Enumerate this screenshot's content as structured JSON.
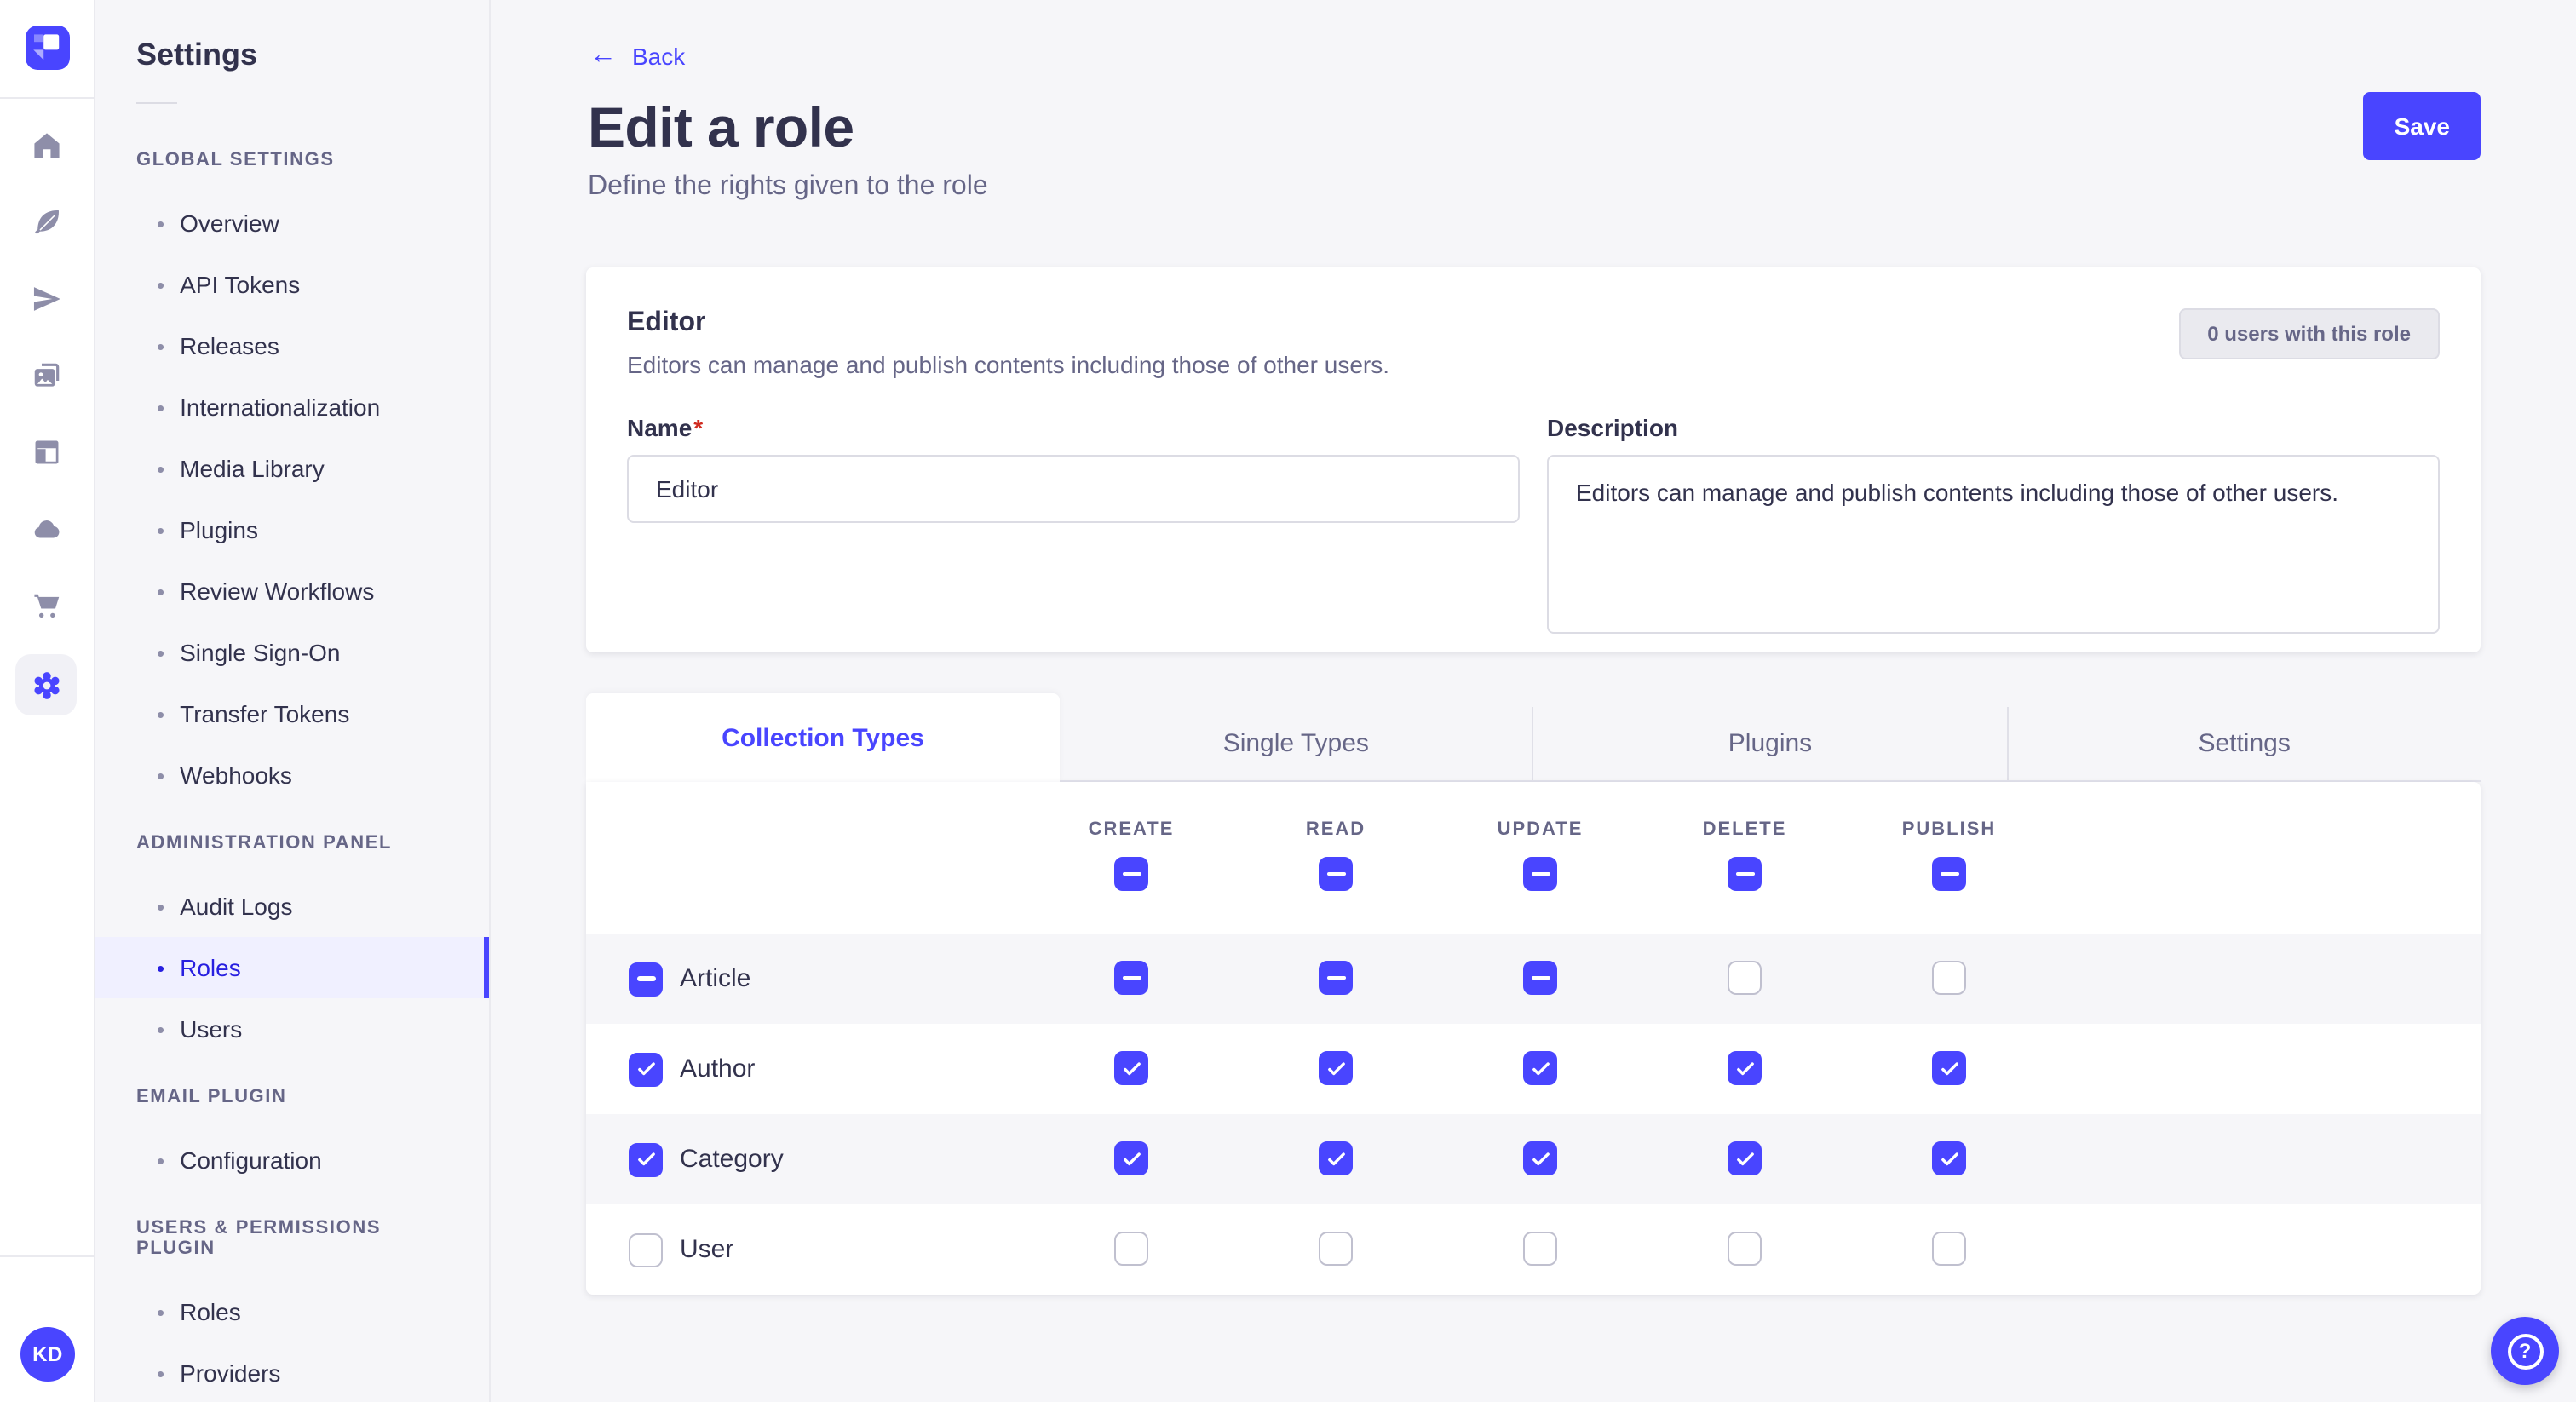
{
  "rail": {
    "logo": "strapi-logo",
    "icons": [
      {
        "name": "home"
      },
      {
        "name": "feather"
      },
      {
        "name": "send"
      },
      {
        "name": "media-images"
      },
      {
        "name": "layout"
      },
      {
        "name": "cloud"
      },
      {
        "name": "cart"
      },
      {
        "name": "gear",
        "active": true
      }
    ],
    "avatar_initials": "KD"
  },
  "sidebar": {
    "title": "Settings",
    "sections": [
      {
        "label": "GLOBAL SETTINGS",
        "items": [
          {
            "label": "Overview"
          },
          {
            "label": "API Tokens"
          },
          {
            "label": "Releases"
          },
          {
            "label": "Internationalization"
          },
          {
            "label": "Media Library"
          },
          {
            "label": "Plugins"
          },
          {
            "label": "Review Workflows"
          },
          {
            "label": "Single Sign-On"
          },
          {
            "label": "Transfer Tokens"
          },
          {
            "label": "Webhooks"
          }
        ]
      },
      {
        "label": "ADMINISTRATION PANEL",
        "items": [
          {
            "label": "Audit Logs"
          },
          {
            "label": "Roles",
            "active": true
          },
          {
            "label": "Users"
          }
        ]
      },
      {
        "label": "EMAIL PLUGIN",
        "items": [
          {
            "label": "Configuration"
          }
        ]
      },
      {
        "label": "USERS & PERMISSIONS PLUGIN",
        "items": [
          {
            "label": "Roles"
          },
          {
            "label": "Providers"
          }
        ]
      }
    ]
  },
  "header": {
    "back_label": "Back",
    "title": "Edit a role",
    "subtitle": "Define the rights given to the role",
    "save_label": "Save"
  },
  "role_card": {
    "title": "Editor",
    "subtitle": "Editors can manage and publish contents including those of other users.",
    "users_badge": "0 users with this role",
    "name_label": "Name",
    "required_mark": "*",
    "name_value": "Editor",
    "description_label": "Description",
    "description_value": "Editors can manage and publish contents including those of other users."
  },
  "permissions": {
    "tabs": [
      {
        "label": "Collection Types",
        "active": true
      },
      {
        "label": "Single Types"
      },
      {
        "label": "Plugins"
      },
      {
        "label": "Settings"
      }
    ],
    "columns": [
      "CREATE",
      "READ",
      "UPDATE",
      "DELETE",
      "PUBLISH"
    ],
    "select_all": [
      "indeterminate",
      "indeterminate",
      "indeterminate",
      "indeterminate",
      "indeterminate"
    ],
    "rows": [
      {
        "label": "Article",
        "row_state": "indeterminate",
        "cells": [
          "indeterminate",
          "indeterminate",
          "indeterminate",
          "none",
          "none"
        ]
      },
      {
        "label": "Author",
        "row_state": "checked",
        "cells": [
          "checked",
          "checked",
          "checked",
          "checked",
          "checked"
        ]
      },
      {
        "label": "Category",
        "row_state": "checked",
        "cells": [
          "checked",
          "checked",
          "checked",
          "checked",
          "checked"
        ]
      },
      {
        "label": "User",
        "row_state": "none",
        "cells": [
          "none",
          "none",
          "none",
          "none",
          "none"
        ]
      }
    ]
  },
  "help": {
    "icon": "question-mark"
  },
  "colors": {
    "primary": "#4945ff",
    "primary_dark": "#271fe0",
    "text": "#32324d",
    "muted": "#666687",
    "page_bg": "#f6f6f9"
  }
}
